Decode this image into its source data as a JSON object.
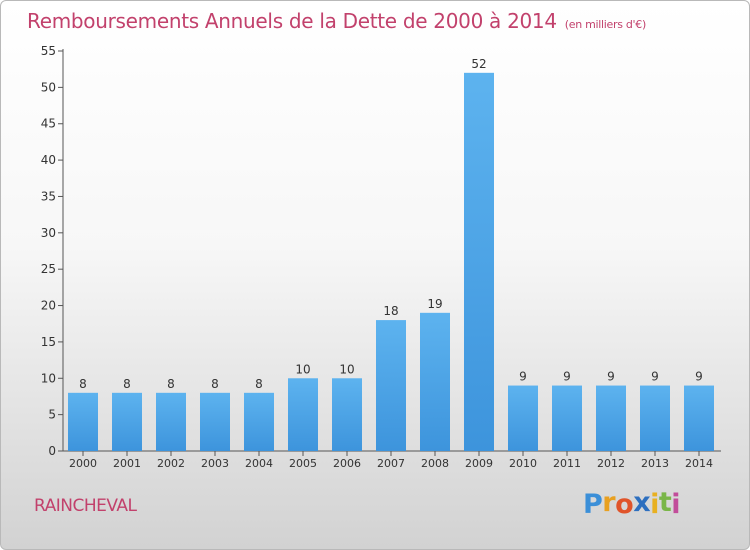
{
  "chart_data": {
    "type": "bar",
    "title": "Remboursements Annuels de la Dette de 2000 à 2014",
    "subtitle": "(en milliers d'€)",
    "categories": [
      "2000",
      "2001",
      "2002",
      "2003",
      "2004",
      "2005",
      "2006",
      "2007",
      "2008",
      "2009",
      "2010",
      "2011",
      "2012",
      "2013",
      "2014"
    ],
    "values": [
      8,
      8,
      8,
      8,
      8,
      10,
      10,
      18,
      19,
      52,
      9,
      9,
      9,
      9,
      9
    ],
    "ylim": [
      0,
      55
    ],
    "yticks": [
      0,
      5,
      10,
      15,
      20,
      25,
      30,
      35,
      40,
      45,
      50,
      55
    ],
    "grid": false,
    "bar_color": "#3d94dc",
    "title_color": "#c2416c"
  },
  "commune": "RAINCHEVAL",
  "brand": {
    "letters": [
      "P",
      "r",
      "o",
      "x",
      "i",
      "t",
      "i"
    ],
    "colors": [
      "#3b8fd8",
      "#e8a020",
      "#e0542a",
      "#2d6fbf",
      "#e8b020",
      "#7ab648",
      "#c24d9a"
    ]
  }
}
